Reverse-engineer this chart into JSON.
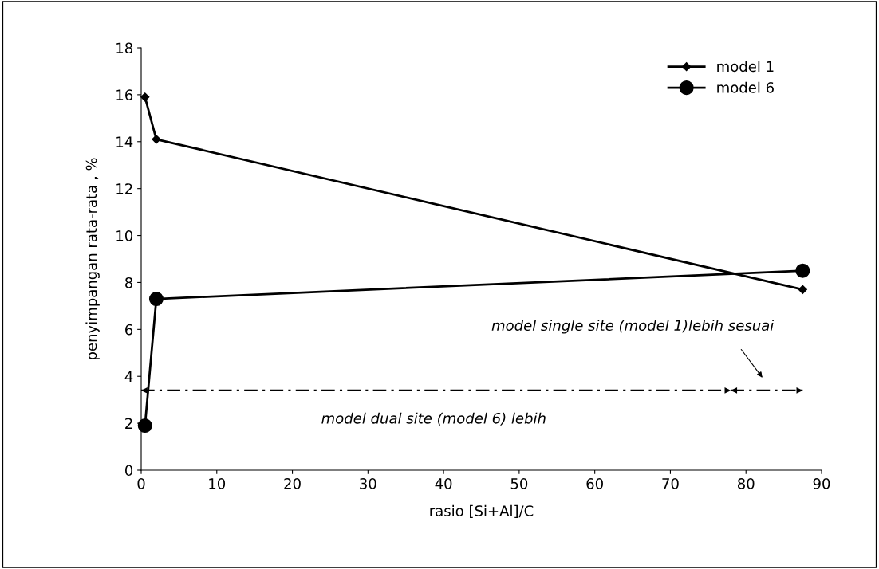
{
  "chart_data": {
    "type": "line",
    "xlabel": "rasio [Si+Al]/C",
    "ylabel": "penyimpangan rata-rata , %",
    "series": [
      {
        "name": "model 1",
        "color": "#000000",
        "marker": "diamond",
        "x": [
          0.5,
          2,
          87.5
        ],
        "values": [
          15.9,
          14.1,
          7.7
        ]
      },
      {
        "name": "model 6",
        "color": "#000000",
        "marker": "circle",
        "x": [
          0.5,
          2,
          87.5
        ],
        "values": [
          1.9,
          7.3,
          8.5
        ]
      },
      {
        "color": "#000000",
        "marker": "none",
        "line_style": "dashed",
        "x": [
          0,
          78
        ],
        "values": [
          3.4,
          3.4
        ]
      },
      {
        "color": "#000000",
        "marker": "none",
        "line_style": "dashed",
        "x": [
          78,
          87.5
        ],
        "values": [
          3.4,
          3.4
        ]
      }
    ],
    "annotations": [
      "model dual site (model 6) lebih",
      "model single site (model 1)lebih sesuai"
    ],
    "xlim": [
      0,
      90
    ],
    "xticks": [
      0,
      10,
      20,
      30,
      40,
      50,
      60,
      70,
      80,
      90
    ],
    "ylim": [
      0,
      18
    ],
    "yticks": [
      0,
      2,
      4,
      6,
      8,
      10,
      12,
      14,
      16,
      18
    ],
    "grid": false,
    "legend": "top right",
    "line_style": "solid"
  }
}
